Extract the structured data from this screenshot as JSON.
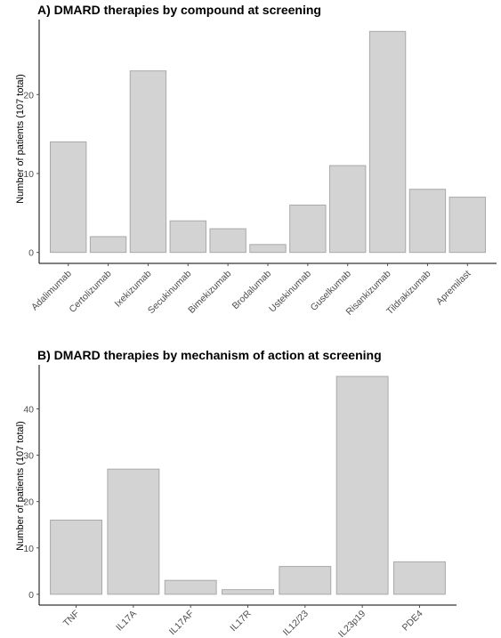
{
  "chart_data": [
    {
      "type": "bar",
      "title": "A) DMARD therapies by compound at screening",
      "xlabel": "",
      "ylabel": "Number of patients (107 total)",
      "categories": [
        "Adalimumab",
        "Certolizumab",
        "Ixekizumab",
        "Secukinumab",
        "Bimekizumab",
        "Brodalumab",
        "Ustekinumab",
        "Guselkumab",
        "Risankizumab",
        "Tildrakizumab",
        "Apremilast"
      ],
      "values": [
        14,
        2,
        23,
        4,
        3,
        1,
        6,
        11,
        28,
        8,
        7
      ],
      "ylim": [
        0,
        29.5
      ],
      "yticks": [
        0,
        10,
        20
      ],
      "grid": false
    },
    {
      "type": "bar",
      "title": "B) DMARD therapies by mechanism of action at screening",
      "xlabel": "",
      "ylabel": "Number of patients (107 total)",
      "categories": [
        "TNF",
        "IL17A",
        "IL17AF",
        "IL17R",
        "IL12/23",
        "IL23p19",
        "PDE4"
      ],
      "values": [
        16,
        27,
        3,
        1,
        6,
        47,
        7
      ],
      "ylim": [
        0,
        49.5
      ],
      "yticks": [
        0,
        10,
        20,
        30,
        40
      ],
      "grid": false
    }
  ]
}
